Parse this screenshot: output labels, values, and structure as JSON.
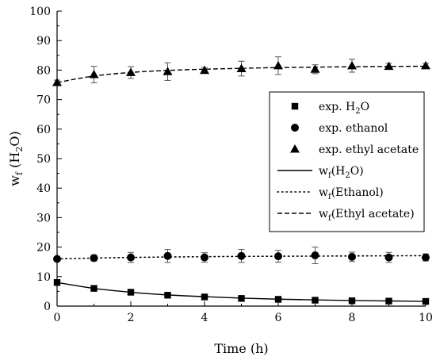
{
  "chart_data": {
    "type": "scatter",
    "xlabel": "Time (h)",
    "ylabel": {
      "base": "w",
      "sub1": "f",
      "mid": " (H",
      "sub2": "2",
      "end": "O)"
    },
    "xlim": [
      0,
      10
    ],
    "ylim": [
      0,
      100
    ],
    "xticks": [
      0,
      2,
      4,
      6,
      8,
      10
    ],
    "yticks": [
      0,
      10,
      20,
      30,
      40,
      50,
      60,
      70,
      80,
      90,
      100
    ],
    "grid": false,
    "legend_position": "right",
    "series": [
      {
        "name": "exp. H₂O",
        "legend": {
          "base": "exp. H",
          "sub": "2",
          "end": "O"
        },
        "kind": "points",
        "marker": "square",
        "x": [
          0,
          1,
          2,
          3,
          4,
          5,
          6,
          7,
          8,
          9,
          10
        ],
        "y": [
          8.0,
          6.0,
          4.7,
          3.7,
          3.1,
          2.6,
          2.3,
          2.0,
          1.8,
          1.7,
          1.6
        ],
        "err": [
          0.3,
          0.3,
          0.3,
          0.3,
          0.3,
          0.3,
          0.3,
          0.3,
          0.3,
          0.3,
          0.3
        ]
      },
      {
        "name": "exp. ethanol",
        "legend": {
          "base": "exp. ethanol"
        },
        "kind": "points",
        "marker": "circle",
        "x": [
          0,
          1,
          2,
          3,
          4,
          5,
          6,
          7,
          8,
          9,
          10
        ],
        "y": [
          16.0,
          16.3,
          16.5,
          17.0,
          16.5,
          17.0,
          16.9,
          17.2,
          16.7,
          16.5,
          16.5
        ],
        "err": [
          0.5,
          1.0,
          1.7,
          2.2,
          1.6,
          2.2,
          2.0,
          2.8,
          1.6,
          1.7,
          1.2
        ]
      },
      {
        "name": "exp. ethyl acetate",
        "legend": {
          "base": "exp. ethyl acetate"
        },
        "kind": "points",
        "marker": "triangle",
        "x": [
          0,
          1,
          2,
          3,
          4,
          5,
          6,
          7,
          8,
          9,
          10
        ],
        "y": [
          75.8,
          78.5,
          79.2,
          79.5,
          79.9,
          80.5,
          81.5,
          80.3,
          81.5,
          81.3,
          81.5
        ],
        "err": [
          0.8,
          2.8,
          2.0,
          3.0,
          1.0,
          2.5,
          3.0,
          1.5,
          2.2,
          1.0,
          0.8
        ]
      },
      {
        "name": "w_f(H₂O)",
        "legend": {
          "base": "w",
          "sub": "f",
          "end": "(H",
          "sub2": "2",
          "end2": "O)"
        },
        "kind": "line",
        "dash": "solid",
        "x": [
          0,
          1,
          2,
          3,
          4,
          5,
          6,
          7,
          8,
          9,
          10
        ],
        "y": [
          8.0,
          6.0,
          4.7,
          3.8,
          3.2,
          2.7,
          2.35,
          2.1,
          1.9,
          1.75,
          1.6
        ]
      },
      {
        "name": "w_f(Ethanol)",
        "legend": {
          "base": "w",
          "sub": "f",
          "end": "(Ethanol)"
        },
        "kind": "line",
        "dash": "dotted",
        "x": [
          0,
          1,
          2,
          3,
          4,
          5,
          6,
          7,
          8,
          9,
          10
        ],
        "y": [
          16.0,
          16.3,
          16.5,
          16.65,
          16.75,
          16.85,
          16.9,
          16.95,
          17.0,
          17.05,
          17.1
        ]
      },
      {
        "name": "w_f(Ethyl acetate)",
        "legend": {
          "base": "w",
          "sub": "f",
          "end": "(Ethyl acetate)"
        },
        "kind": "line",
        "dash": "dashed",
        "x": [
          0,
          1,
          2,
          3,
          4,
          5,
          6,
          7,
          8,
          9,
          10
        ],
        "y": [
          75.8,
          78.0,
          79.2,
          79.9,
          80.3,
          80.6,
          80.85,
          81.0,
          81.15,
          81.25,
          81.3
        ]
      }
    ]
  }
}
